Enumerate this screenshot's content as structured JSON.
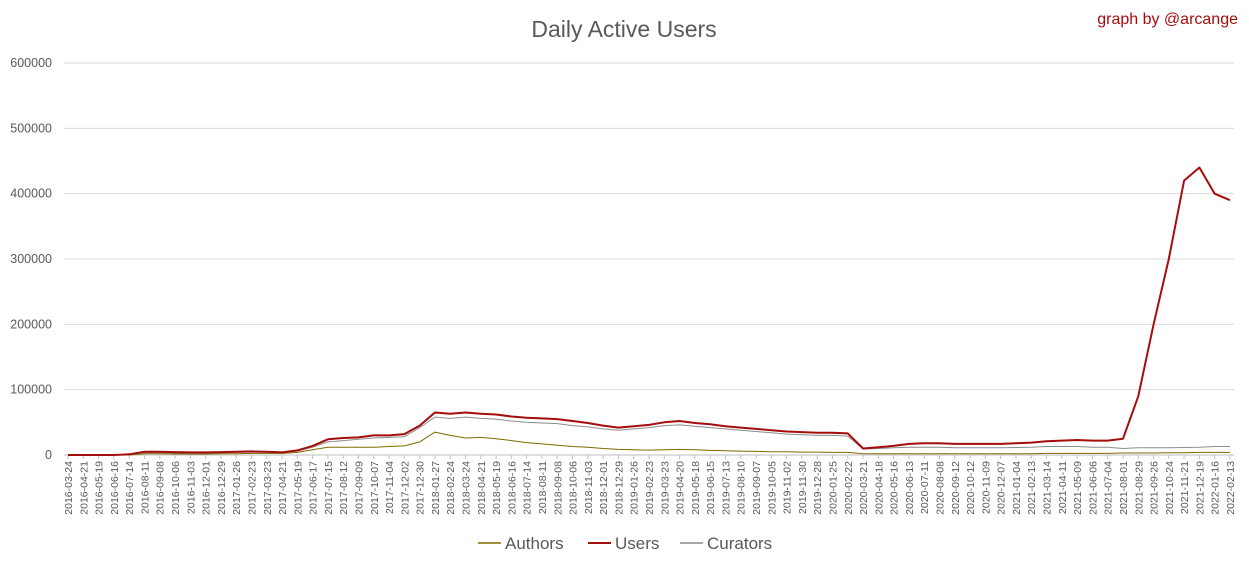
{
  "chart_data": {
    "type": "line",
    "title": "Daily Active Users",
    "credit": "graph by @arcange",
    "xlabel": "",
    "ylabel": "",
    "ylim": [
      0,
      600000
    ],
    "yticks": [
      "0",
      "100000",
      "200000",
      "300000",
      "400000",
      "500000",
      "600000"
    ],
    "grid": true,
    "legend_position": "bottom",
    "colors": {
      "Authors": "#806b00",
      "Users": "#a50d0d",
      "Curators": "#8c8c8c",
      "credit": "#a50d0d"
    },
    "x": [
      "2016-03-24",
      "2016-04-21",
      "2016-05-19",
      "2016-06-16",
      "2016-07-14",
      "2016-08-11",
      "2016-09-08",
      "2016-10-06",
      "2016-11-03",
      "2016-12-01",
      "2016-12-29",
      "2017-01-26",
      "2017-02-23",
      "2017-03-23",
      "2017-04-21",
      "2017-05-19",
      "2017-06-17",
      "2017-07-15",
      "2017-08-12",
      "2017-09-09",
      "2017-10-07",
      "2017-11-04",
      "2017-12-02",
      "2017-12-30",
      "2018-01-27",
      "2018-02-24",
      "2018-03-24",
      "2018-04-21",
      "2018-05-19",
      "2018-06-16",
      "2018-07-14",
      "2018-08-11",
      "2018-09-08",
      "2018-10-06",
      "2018-11-03",
      "2018-12-01",
      "2018-12-29",
      "2019-01-26",
      "2019-02-23",
      "2019-03-23",
      "2019-04-20",
      "2019-05-18",
      "2019-06-15",
      "2019-07-13",
      "2019-08-10",
      "2019-09-07",
      "2019-10-05",
      "2019-11-02",
      "2019-11-30",
      "2019-12-28",
      "2020-01-25",
      "2020-02-22",
      "2020-03-21",
      "2020-04-18",
      "2020-05-16",
      "2020-06-13",
      "2020-07-11",
      "2020-08-08",
      "2020-09-12",
      "2020-10-12",
      "2020-11-09",
      "2020-12-07",
      "2021-01-04",
      "2021-02-13",
      "2021-03-14",
      "2021-04-11",
      "2021-05-09",
      "2021-06-06",
      "2021-07-04",
      "2021-08-01",
      "2021-08-29",
      "2021-09-26",
      "2021-10-24",
      "2021-11-21",
      "2021-12-19",
      "2022-01-16",
      "2022-02-13"
    ],
    "series": [
      {
        "name": "Authors",
        "values": [
          0,
          0,
          0,
          0,
          0,
          2000,
          2000,
          1500,
          1500,
          1500,
          2000,
          2000,
          2500,
          2500,
          2500,
          4000,
          8000,
          12000,
          12000,
          12000,
          12000,
          13000,
          14000,
          20000,
          35000,
          30000,
          26000,
          27000,
          25000,
          22000,
          19000,
          17000,
          15000,
          13000,
          12000,
          10000,
          8500,
          8000,
          7500,
          8000,
          8500,
          8000,
          7000,
          6500,
          6000,
          5500,
          5000,
          5000,
          4500,
          4500,
          4000,
          4000,
          2000,
          2000,
          2000,
          2000,
          2000,
          2000,
          2000,
          2000,
          2000,
          2000,
          2000,
          2000,
          2500,
          2500,
          2500,
          2500,
          2500,
          3000,
          3000,
          3000,
          3500,
          3500,
          4000,
          4000,
          4000
        ]
      },
      {
        "name": "Users",
        "values": [
          0,
          0,
          0,
          0,
          1000,
          5000,
          5000,
          4500,
          4000,
          4000,
          4500,
          5000,
          5500,
          5000,
          4000,
          7000,
          14000,
          24000,
          26000,
          27000,
          30000,
          30000,
          32000,
          45000,
          65000,
          63000,
          65000,
          63000,
          62000,
          59000,
          57000,
          56000,
          55000,
          52000,
          49000,
          45000,
          42000,
          44000,
          46000,
          50000,
          52000,
          49000,
          47000,
          44000,
          42000,
          40000,
          38000,
          36000,
          35000,
          34000,
          34000,
          33000,
          10000,
          12000,
          14000,
          17000,
          18000,
          18000,
          17000,
          17000,
          17000,
          17000,
          18000,
          19000,
          21000,
          22000,
          23000,
          22000,
          22000,
          25000,
          90000,
          200000,
          300000,
          420000,
          440000,
          400000,
          390000
        ]
      },
      {
        "name": "Curators",
        "values": [
          0,
          0,
          0,
          0,
          1000,
          3500,
          3500,
          3000,
          3000,
          3000,
          3500,
          4000,
          4500,
          4000,
          3500,
          6000,
          12000,
          20000,
          22000,
          24000,
          26000,
          27000,
          28000,
          42000,
          58000,
          56000,
          58000,
          56000,
          55000,
          52000,
          50000,
          49000,
          48000,
          45000,
          43000,
          40000,
          38000,
          40000,
          42000,
          45000,
          46000,
          44000,
          42000,
          40000,
          38000,
          36000,
          34000,
          32000,
          31000,
          30000,
          30000,
          29000,
          9000,
          10000,
          11000,
          12000,
          12000,
          12000,
          11000,
          11000,
          11000,
          11000,
          11500,
          12000,
          13000,
          13000,
          13000,
          12000,
          12000,
          10000,
          11000,
          11000,
          11000,
          11500,
          12000,
          13000,
          13000
        ]
      }
    ]
  }
}
